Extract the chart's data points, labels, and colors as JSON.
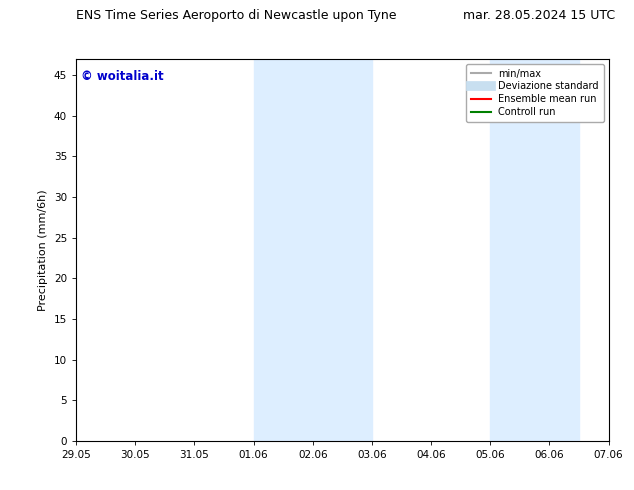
{
  "title_left": "ENS Time Series Aeroporto di Newcastle upon Tyne",
  "title_right": "mar. 28.05.2024 15 UTC",
  "ylabel": "Precipitation (mm/6h)",
  "xtick_labels": [
    "29.05",
    "30.05",
    "31.05",
    "01.06",
    "02.06",
    "03.06",
    "04.06",
    "05.06",
    "06.06",
    "07.06"
  ],
  "ytick_values": [
    0,
    5,
    10,
    15,
    20,
    25,
    30,
    35,
    40,
    45
  ],
  "ylim": [
    0,
    47
  ],
  "xlim": [
    0,
    9
  ],
  "shaded_regions": [
    {
      "x_start": 3,
      "x_end": 5,
      "color": "#ddeeff"
    },
    {
      "x_start": 7,
      "x_end": 8.5,
      "color": "#ddeeff"
    }
  ],
  "watermark_text": "© woitalia.it",
  "watermark_color": "#0000cc",
  "legend_entries": [
    {
      "label": "min/max",
      "color": "#aaaaaa",
      "lw": 1.5
    },
    {
      "label": "Deviazione standard",
      "color": "#c8dff0",
      "lw": 7
    },
    {
      "label": "Ensemble mean run",
      "color": "#ff0000",
      "lw": 1.5
    },
    {
      "label": "Controll run",
      "color": "#008000",
      "lw": 1.5
    }
  ],
  "bg_color": "#ffffff",
  "plot_bg_color": "#ffffff",
  "tick_fontsize": 7.5,
  "label_fontsize": 8,
  "title_fontsize": 9
}
